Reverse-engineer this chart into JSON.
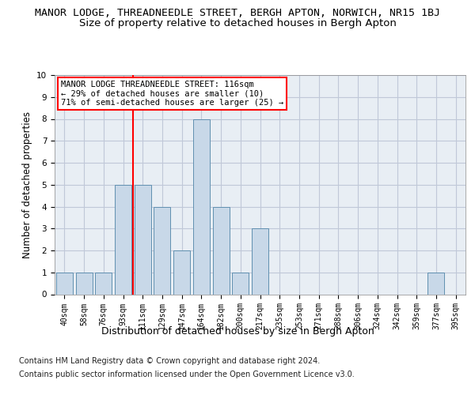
{
  "title_main": "MANOR LODGE, THREADNEEDLE STREET, BERGH APTON, NORWICH, NR15 1BJ",
  "title_sub": "Size of property relative to detached houses in Bergh Apton",
  "xlabel": "Distribution of detached houses by size in Bergh Apton",
  "ylabel": "Number of detached properties",
  "footer_line1": "Contains HM Land Registry data © Crown copyright and database right 2024.",
  "footer_line2": "Contains public sector information licensed under the Open Government Licence v3.0.",
  "categories": [
    "40sqm",
    "58sqm",
    "76sqm",
    "93sqm",
    "111sqm",
    "129sqm",
    "147sqm",
    "164sqm",
    "182sqm",
    "200sqm",
    "217sqm",
    "235sqm",
    "253sqm",
    "271sqm",
    "288sqm",
    "306sqm",
    "324sqm",
    "342sqm",
    "359sqm",
    "377sqm",
    "395sqm"
  ],
  "values": [
    1,
    1,
    1,
    5,
    5,
    4,
    2,
    8,
    4,
    1,
    3,
    0,
    0,
    0,
    0,
    0,
    0,
    0,
    0,
    1,
    0
  ],
  "bar_color": "#c8d8e8",
  "bar_edge_color": "#6090b0",
  "red_line_index": 4,
  "annotation_text": "MANOR LODGE THREADNEEDLE STREET: 116sqm\n← 29% of detached houses are smaller (10)\n71% of semi-detached houses are larger (25) →",
  "annotation_box_color": "white",
  "annotation_box_edge": "red",
  "ylim": [
    0,
    10
  ],
  "yticks": [
    0,
    1,
    2,
    3,
    4,
    5,
    6,
    7,
    8,
    9,
    10
  ],
  "grid_color": "#c0c8d8",
  "background_color": "#e8eef4",
  "title_main_fontsize": 9.5,
  "title_sub_fontsize": 9.5,
  "xlabel_fontsize": 9,
  "ylabel_fontsize": 8.5,
  "footer_fontsize": 7,
  "tick_fontsize": 7,
  "annot_fontsize": 7.5
}
